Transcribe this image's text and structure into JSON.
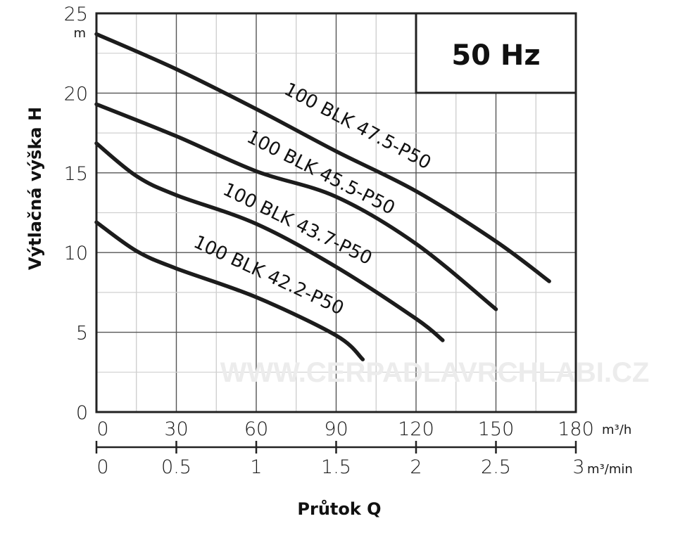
{
  "chart_data": {
    "type": "line",
    "title": "",
    "frequency_label": "50 Hz",
    "xlabel": "Průtok Q",
    "ylabel": "Výtlačná výška H",
    "y_unit": "m",
    "x_unit": "m³/h",
    "x2_unit": "m³/min",
    "xlim": [
      0,
      180
    ],
    "ylim": [
      0,
      25
    ],
    "x_ticks": [
      "0",
      "30",
      "60",
      "90",
      "120",
      "150",
      "180"
    ],
    "x_tick_values": [
      0,
      30,
      60,
      90,
      120,
      150,
      180
    ],
    "x2_ticks": [
      "0",
      "0.5",
      "1",
      "1.5",
      "2",
      "2.5",
      "3"
    ],
    "y_ticks": [
      "0",
      "5",
      "10",
      "15",
      "20",
      "25"
    ],
    "y_tick_values": [
      0,
      5,
      10,
      15,
      20,
      25
    ],
    "grid": true,
    "watermark": "WWW.CERPADLAVRCHLABI.CZ",
    "series": [
      {
        "name": "100 BLK 47.5-P50",
        "x": [
          0,
          30,
          60,
          90,
          120,
          150,
          170
        ],
        "y": [
          23.7,
          21.5,
          19.0,
          16.35,
          13.85,
          10.7,
          8.2
        ]
      },
      {
        "name": "100 BLK 45.5-P50",
        "x": [
          0,
          30,
          60,
          90,
          120,
          150
        ],
        "y": [
          19.3,
          17.3,
          15.1,
          13.5,
          10.55,
          6.45
        ]
      },
      {
        "name": "100 BLK 43.7-P50",
        "x": [
          0,
          15,
          30,
          60,
          90,
          120,
          130
        ],
        "y": [
          16.85,
          14.8,
          13.6,
          11.8,
          9.1,
          5.85,
          4.5
        ]
      },
      {
        "name": "100 BLK 42.2-P50",
        "x": [
          0,
          15,
          30,
          60,
          90,
          100
        ],
        "y": [
          11.9,
          10.1,
          9.0,
          7.2,
          4.8,
          3.3
        ]
      }
    ]
  }
}
